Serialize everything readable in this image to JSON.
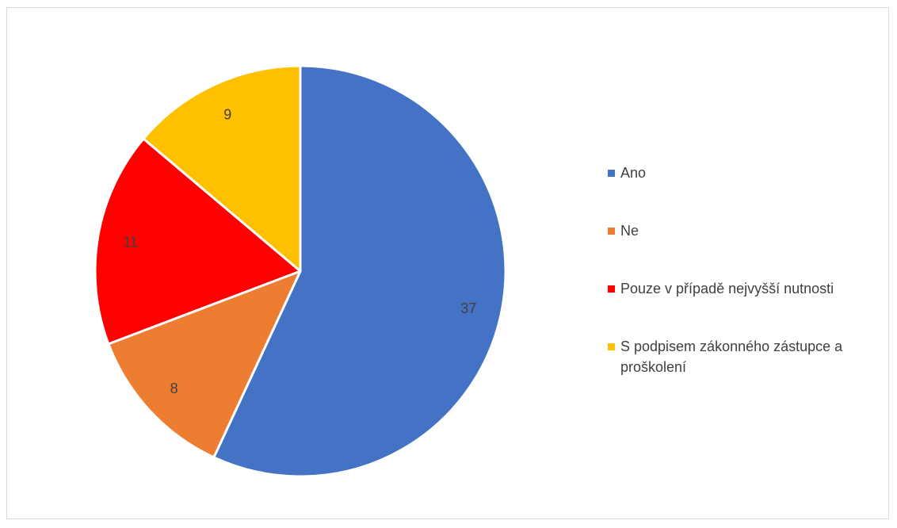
{
  "chart_data": {
    "type": "pie",
    "categories": [
      "Ano",
      "Ne",
      "Pouze v případě nejvyšší nutnosti",
      "S podpisem zákonného zástupce a proškolení"
    ],
    "values": [
      37,
      8,
      11,
      9
    ],
    "colors": [
      "#4472C4",
      "#ED7D31",
      "#FF0000",
      "#FFC000"
    ],
    "start_angle_deg": 0,
    "direction": "clockwise",
    "data_labels": [
      "37",
      "8",
      "11",
      "9"
    ],
    "legend_position": "right",
    "title": ""
  },
  "legend": {
    "items": [
      {
        "label": "Ano",
        "color": "#4472C4"
      },
      {
        "label": "Ne",
        "color": "#ED7D31"
      },
      {
        "label": "Pouze v případě nejvyšší nutnosti",
        "color": "#FF0000"
      },
      {
        "label": "S podpisem zákonného zástupce a proškolení",
        "color": "#FFC000"
      }
    ]
  }
}
